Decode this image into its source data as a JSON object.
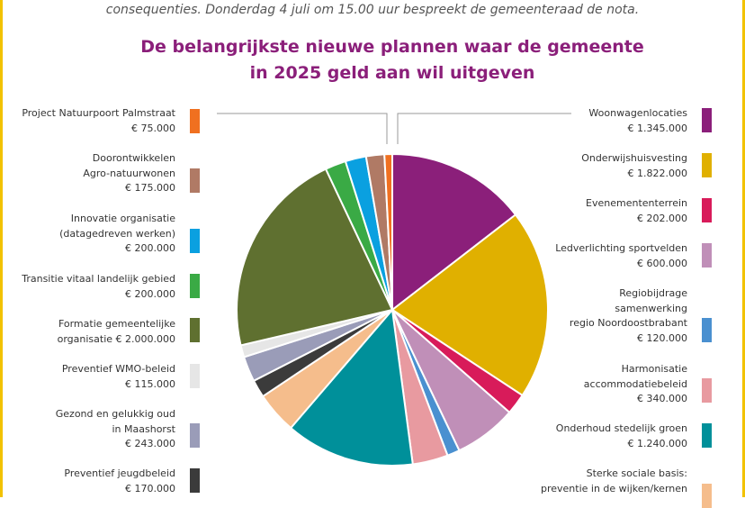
{
  "intro_text": "consequenties. Donderdag 4 juli om 15.00 uur bespreekt de gemeenteraad de nota.",
  "title_line1": "De belangrijkste nieuwe plannen waar de gemeente",
  "title_line2": "in 2025 geld aan wil uitgeven",
  "chart_data": {
    "type": "pie",
    "title": "De belangrijkste nieuwe plannen waar de gemeente in 2025 geld aan wil uitgeven",
    "unit": "€",
    "order": "clockwise from top",
    "slices": [
      {
        "label": [
          "Woonwagenlocaties",
          "€ 1.345.000"
        ],
        "value": 1345000,
        "color": "#8b1f7a",
        "side": "right"
      },
      {
        "label": [
          "Onderwijshuisvesting",
          "€ 1.822.000"
        ],
        "value": 1822000,
        "color": "#e0b000",
        "side": "right"
      },
      {
        "label": [
          "Evenemententerrein",
          "€ 202.000"
        ],
        "value": 202000,
        "color": "#d81b5a",
        "side": "right"
      },
      {
        "label": [
          "Ledverlichting sportvelden",
          "€ 600.000"
        ],
        "value": 600000,
        "color": "#c08fb8",
        "side": "right"
      },
      {
        "label": [
          "Regiobijdrage",
          "samenwerking",
          "regio Noordoostbrabant",
          "€ 120.000"
        ],
        "value": 120000,
        "color": "#4a90d0",
        "side": "right"
      },
      {
        "label": [
          "Harmonisatie",
          "accommodatiebeleid",
          "€ 340.000"
        ],
        "value": 340000,
        "color": "#e89aa0",
        "side": "right"
      },
      {
        "label": [
          "Onderhoud stedelijk groen",
          "€ 1.240.000"
        ],
        "value": 1240000,
        "color": "#00909a",
        "side": "right"
      },
      {
        "label": [
          "Sterke sociale basis:",
          "preventie in de wijken/kernen"
        ],
        "value": 400000,
        "color": "#f5bd8c",
        "side": "right"
      },
      {
        "label": [
          "Preventief jeugdbeleid",
          "€ 170.000"
        ],
        "value": 170000,
        "color": "#3b3b3b",
        "side": "left"
      },
      {
        "label": [
          "Gezond en gelukkig oud",
          "in Maashorst",
          "€ 243.000"
        ],
        "value": 243000,
        "color": "#9a9cb8",
        "side": "left"
      },
      {
        "label": [
          "Preventief WMO-beleid",
          "€ 115.000"
        ],
        "value": 115000,
        "color": "#e6e6e6",
        "side": "left"
      },
      {
        "label": [
          "Formatie gemeentelijke",
          "organisatie € 2.000.000"
        ],
        "value": 2000000,
        "color": "#5f7030",
        "side": "left"
      },
      {
        "label": [
          "Transitie vitaal landelijk gebied",
          "€ 200.000"
        ],
        "value": 200000,
        "color": "#3aaa45",
        "side": "left"
      },
      {
        "label": [
          "Innovatie organisatie",
          "(datagedreven werken)",
          "€ 200.000"
        ],
        "value": 200000,
        "color": "#0aa0e0",
        "side": "left"
      },
      {
        "label": [
          "Doorontwikkelen",
          "Agro-natuurwonen",
          "€ 175.000"
        ],
        "value": 175000,
        "color": "#b07a65",
        "side": "left"
      },
      {
        "label": [
          "Project Natuurpoort Palmstraat",
          "€ 75.000"
        ],
        "value": 75000,
        "color": "#f07020",
        "side": "left"
      }
    ]
  }
}
